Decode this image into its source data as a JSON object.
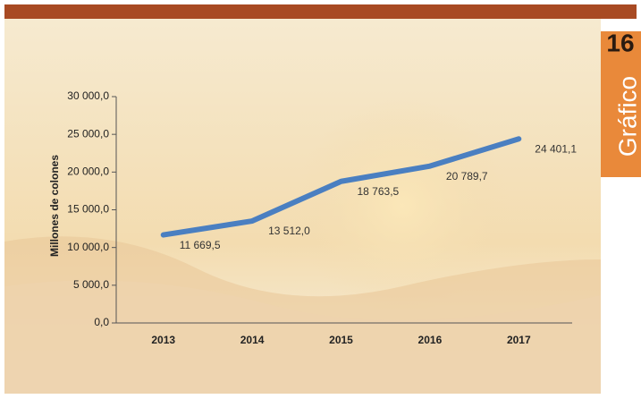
{
  "badge": {
    "number": "16",
    "label": "Gráfico"
  },
  "chart_data": {
    "type": "line",
    "y_label": "Millones de colones",
    "categories": [
      "2013",
      "2014",
      "2015",
      "2016",
      "2017"
    ],
    "series": [
      {
        "name": null,
        "color": "#4a7fc1",
        "values": [
          11669.5,
          13512.0,
          18763.5,
          20789.7,
          24401.1
        ],
        "value_labels": [
          "11 669,5",
          "13 512,0",
          "18 763,5",
          "20 789,7",
          "24 401,1"
        ]
      }
    ],
    "ylim": [
      0,
      30000
    ],
    "yticks": [
      {
        "value": 0,
        "label": "0,0"
      },
      {
        "value": 5000,
        "label": "5 000,0"
      },
      {
        "value": 10000,
        "label": "10 000,0"
      },
      {
        "value": 15000,
        "label": "15 000,0"
      },
      {
        "value": 20000,
        "label": "20 000,0"
      },
      {
        "value": 25000,
        "label": "25 000,0"
      },
      {
        "value": 30000,
        "label": "30 000,0"
      }
    ]
  }
}
